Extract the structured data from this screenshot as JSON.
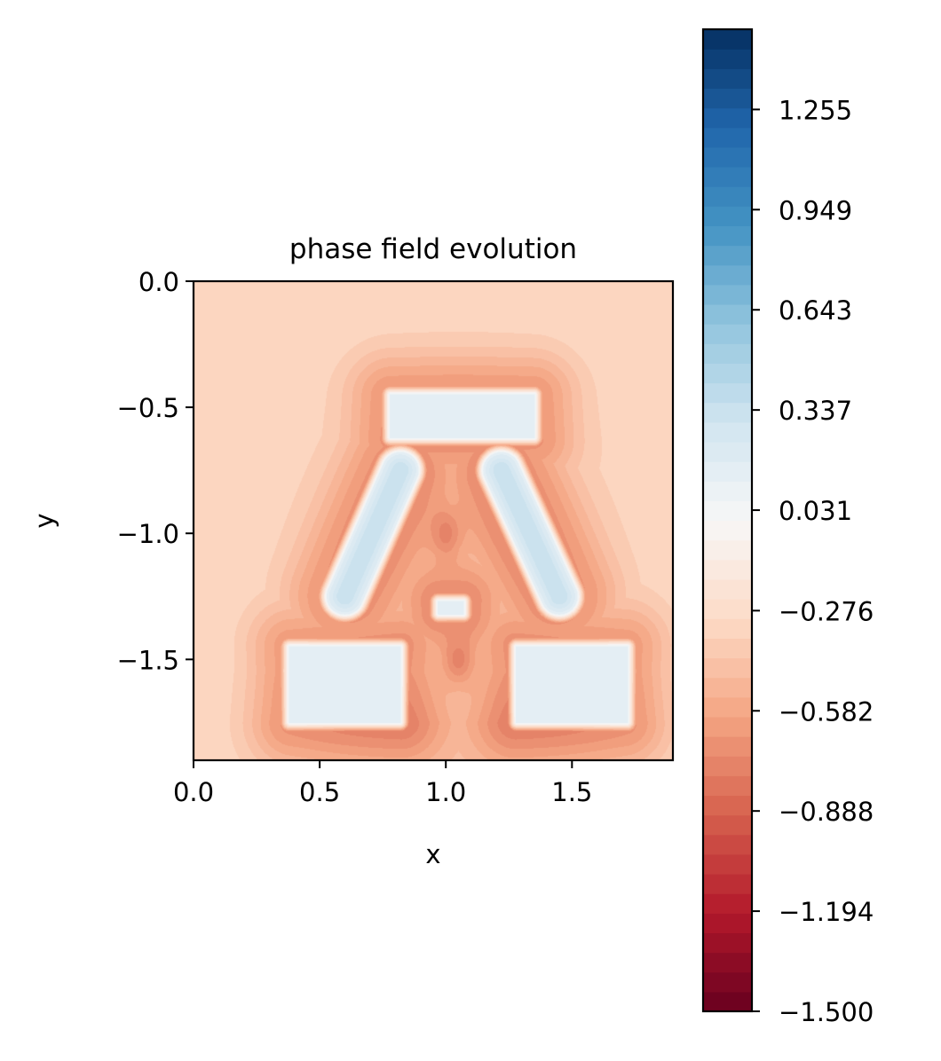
{
  "chart_data": {
    "type": "heatmap",
    "subtype": "filled-contour",
    "title": "phase field evolution",
    "xlabel": "x",
    "ylabel": "y",
    "xlim": [
      0,
      1.9
    ],
    "ylim": [
      -1.9,
      0.0
    ],
    "x_ticks": [
      0.0,
      0.5,
      1.0,
      1.5
    ],
    "x_tick_labels": [
      "0.0",
      "0.5",
      "1.0",
      "1.5"
    ],
    "y_ticks": [
      0.0,
      -0.5,
      -1.0,
      -1.5
    ],
    "y_tick_labels": [
      "0.0",
      "−0.5",
      "−1.0",
      "−1.5"
    ],
    "colormap": "RdBu",
    "colorbar": {
      "min": -1.5,
      "max": 1.5,
      "ticks": [
        1.255,
        0.949,
        0.643,
        0.337,
        0.031,
        -0.276,
        -0.582,
        -0.888,
        -1.194,
        -1.5
      ],
      "tick_labels": [
        "1.255",
        "0.949",
        "0.643",
        "0.337",
        "0.031",
        "−0.276",
        "−0.582",
        "−0.888",
        "−1.194",
        "−1.500"
      ]
    },
    "field": {
      "background_value": -0.3,
      "high_regions": [
        {
          "shape": "bar",
          "x": [
            0.78,
            1.35
          ],
          "y": [
            -0.45,
            -0.62
          ],
          "value": 0.65
        },
        {
          "shape": "diagonal",
          "x": [
            0.6,
            0.82
          ],
          "y": [
            -0.75,
            -1.25
          ],
          "value": 0.35
        },
        {
          "shape": "diagonal",
          "x": [
            1.22,
            1.45
          ],
          "y": [
            -0.75,
            -1.25
          ],
          "value": 0.35
        },
        {
          "shape": "block",
          "x": [
            0.38,
            0.82
          ],
          "y": [
            -1.45,
            -1.75
          ],
          "value": 0.6
        },
        {
          "shape": "block",
          "x": [
            1.28,
            1.72
          ],
          "y": [
            -1.45,
            -1.75
          ],
          "value": 0.6
        },
        {
          "shape": "spot",
          "x": [
            0.97,
            1.07
          ],
          "y": [
            -1.27,
            -1.32
          ],
          "value": 0.45
        }
      ],
      "low_regions": [
        {
          "shape": "spot",
          "x": [
            1.0
          ],
          "y": [
            -1.0
          ],
          "value": -0.75
        },
        {
          "shape": "spot",
          "x": [
            1.05
          ],
          "y": [
            -1.5
          ],
          "value": -0.75
        },
        {
          "shape": "base",
          "x": [
            0.3,
            1.8
          ],
          "y": [
            -1.6,
            -1.9
          ],
          "value": -0.62
        }
      ]
    }
  }
}
